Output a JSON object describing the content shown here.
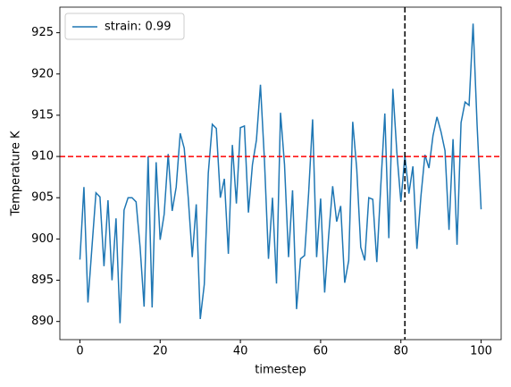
{
  "chart_data": {
    "type": "line",
    "xlabel": "timestep",
    "ylabel": "Temperature K",
    "x": [
      0,
      1,
      2,
      3,
      4,
      5,
      6,
      7,
      8,
      9,
      10,
      11,
      12,
      13,
      14,
      15,
      16,
      17,
      18,
      19,
      20,
      21,
      22,
      23,
      24,
      25,
      26,
      27,
      28,
      29,
      30,
      31,
      32,
      33,
      34,
      35,
      36,
      37,
      38,
      39,
      40,
      41,
      42,
      43,
      44,
      45,
      46,
      47,
      48,
      49,
      50,
      51,
      52,
      53,
      54,
      55,
      56,
      57,
      58,
      59,
      60,
      61,
      62,
      63,
      64,
      65,
      66,
      67,
      68,
      69,
      70,
      71,
      72,
      73,
      74,
      75,
      76,
      77,
      78,
      79,
      80,
      81,
      82,
      83,
      84,
      85,
      86,
      87,
      88,
      89,
      90,
      91,
      92,
      93,
      94,
      95,
      96,
      97,
      98,
      99,
      100
    ],
    "series": [
      {
        "name": "strain: 0.99",
        "color": "#1f77b4",
        "values": [
          897.5,
          906.3,
          892.3,
          899,
          905.6,
          905.1,
          896.7,
          904.7,
          895,
          902.5,
          889.8,
          903.5,
          905,
          905,
          904.5,
          899,
          891.8,
          910,
          891.7,
          909.3,
          899.9,
          903,
          910.3,
          903.4,
          906.3,
          912.8,
          911,
          905,
          897.8,
          904.2,
          890.3,
          894.5,
          908,
          913.9,
          913.4,
          905,
          907.3,
          898.2,
          911.4,
          904.3,
          913.5,
          913.7,
          903.2,
          909,
          912,
          918.7,
          909.5,
          897.6,
          905,
          894.6,
          915.3,
          909,
          897.8,
          905.9,
          891.5,
          897.6,
          898,
          905.5,
          914.5,
          897.8,
          904.9,
          893.5,
          900.4,
          906.4,
          902.1,
          904,
          894.7,
          897.4,
          914.2,
          908.5,
          899,
          897.4,
          905,
          904.8,
          897.2,
          906.5,
          915.2,
          900.1,
          918.2,
          910.5,
          904.5,
          910.1,
          905.5,
          908.8,
          898.8,
          905.2,
          910.2,
          908.6,
          912.5,
          914.8,
          913,
          910.7,
          901.1,
          912.1,
          899.3,
          914.1,
          916.6,
          916.2,
          926.1,
          913.8,
          903.6
        ]
      }
    ],
    "hline": {
      "y": 910,
      "color": "#ff0000"
    },
    "vline": {
      "x": 81,
      "color": "#000000"
    },
    "xlim": [
      -5,
      105
    ],
    "xticks": [
      0,
      20,
      40,
      60,
      80,
      100
    ],
    "ylim": [
      887.8,
      928.1
    ],
    "yticks": [
      890,
      895,
      900,
      905,
      910,
      915,
      920,
      925
    ],
    "legend": "upper left"
  }
}
